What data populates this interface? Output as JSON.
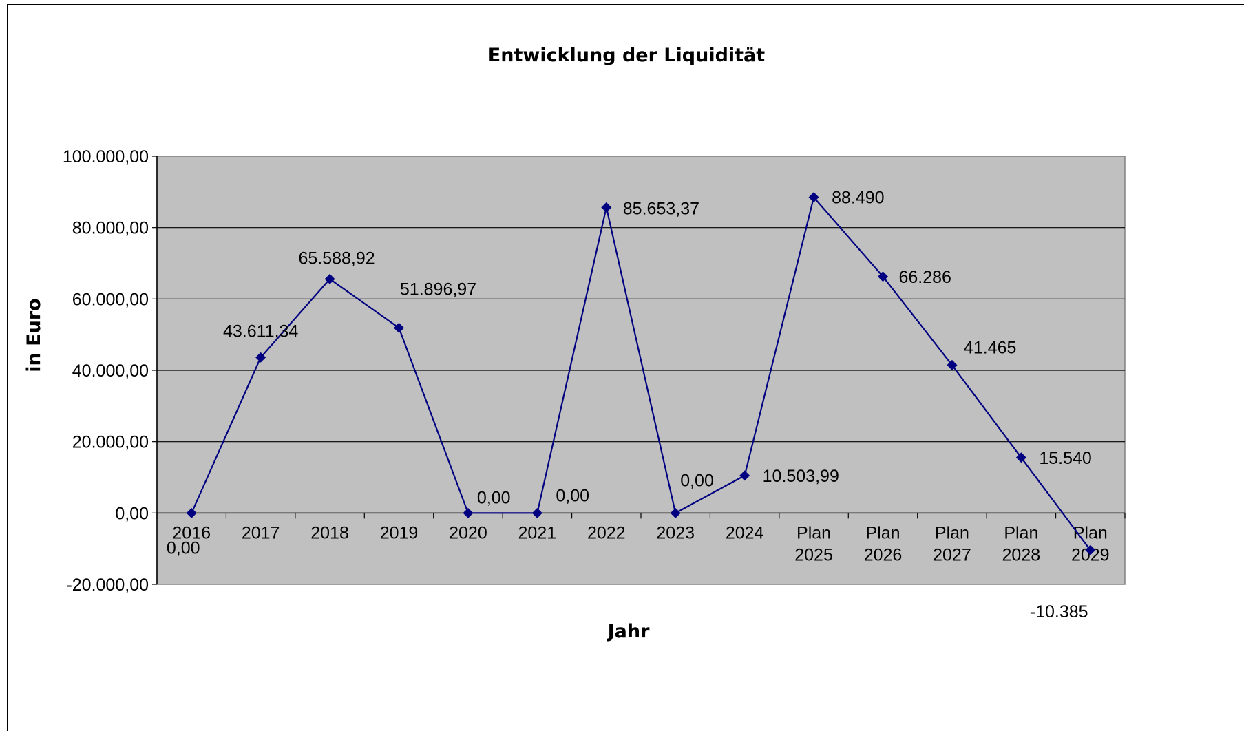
{
  "chart_data": {
    "type": "line",
    "title": "Entwicklung der Liquidität",
    "xlabel": "Jahr",
    "ylabel": "in Euro",
    "categories": [
      [
        "2016"
      ],
      [
        "2017"
      ],
      [
        "2018"
      ],
      [
        "2019"
      ],
      [
        "2020"
      ],
      [
        "2021"
      ],
      [
        "2022"
      ],
      [
        "2023"
      ],
      [
        "2024"
      ],
      [
        "Plan",
        "2025"
      ],
      [
        "Plan",
        "2026"
      ],
      [
        "Plan",
        "2027"
      ],
      [
        "Plan",
        "2028"
      ],
      [
        "Plan",
        "2029"
      ]
    ],
    "values": [
      0,
      43611.34,
      65588.92,
      51896.97,
      0,
      0,
      85653.37,
      0,
      10503.99,
      88490,
      66286,
      41465,
      15540,
      -10385
    ],
    "data_labels": [
      "0,00",
      "43.611,34",
      "65.588,92",
      "51.896,97",
      "0,00",
      "0,00",
      "85.653,37",
      "0,00",
      "10.503,99",
      "88.490",
      "66.286",
      "41.465",
      "15.540",
      "-10.385"
    ],
    "yticks": [
      -20000,
      0,
      20000,
      40000,
      60000,
      80000,
      100000
    ],
    "ytick_labels": [
      "-20.000,00",
      "0,00",
      "20.000,00",
      "40.000,00",
      "60.000,00",
      "80.000,00",
      "100.000,00"
    ],
    "ylim": [
      -20000,
      100000
    ],
    "grid": true,
    "legend": "none",
    "colors": {
      "line": "#000080",
      "marker": "#000080",
      "plot_background": "#c0c0c0",
      "gridline": "#000000"
    }
  }
}
